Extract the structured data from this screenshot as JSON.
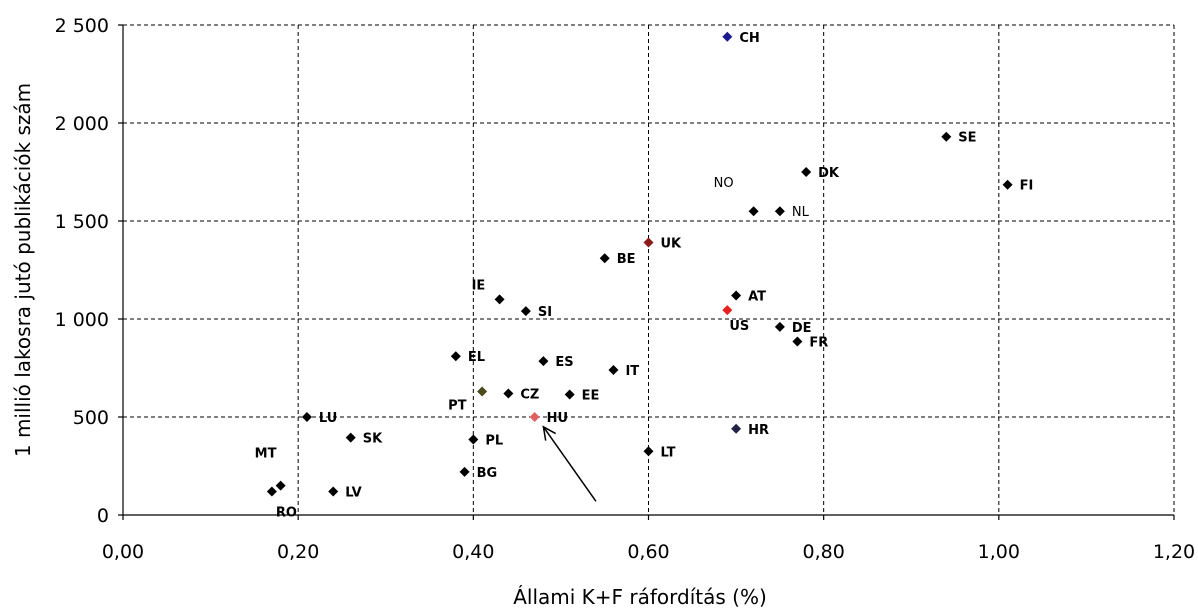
{
  "chart_data": {
    "type": "scatter",
    "xlabel": "Állami K+F ráfordítás (%)",
    "ylabel": "1 millió lakosra jutó publikációk szám",
    "xlim": [
      0,
      1.2
    ],
    "ylim": [
      0,
      2500
    ],
    "x_ticks": [
      {
        "value": 0,
        "label": "0,00"
      },
      {
        "value": 0.2,
        "label": "0,20"
      },
      {
        "value": 0.4,
        "label": "0,40"
      },
      {
        "value": 0.6,
        "label": "0,60"
      },
      {
        "value": 0.8,
        "label": "0,80"
      },
      {
        "value": 1.0,
        "label": "1,00"
      },
      {
        "value": 1.2,
        "label": "1,20"
      }
    ],
    "y_ticks": [
      {
        "value": 0,
        "label": "0"
      },
      {
        "value": 500,
        "label": "500"
      },
      {
        "value": 1000,
        "label": "1 000"
      },
      {
        "value": 1500,
        "label": "1 500"
      },
      {
        "value": 2000,
        "label": "2 000"
      },
      {
        "value": 2500,
        "label": "2 500"
      }
    ],
    "grid": true,
    "points": [
      {
        "label": "CH",
        "x": 0.69,
        "y": 2440,
        "color": "#1a1a8c",
        "label_dx": 12,
        "label_dy": 5
      },
      {
        "label": "SE",
        "x": 0.94,
        "y": 1930,
        "color": "#000000",
        "label_dx": 12,
        "label_dy": 5
      },
      {
        "label": "DK",
        "x": 0.78,
        "y": 1750,
        "color": "#000000",
        "label_dx": 12,
        "label_dy": 5
      },
      {
        "label": "FI",
        "x": 1.01,
        "y": 1685,
        "color": "#000000",
        "label_dx": 12,
        "label_dy": 5
      },
      {
        "label": "NO",
        "x": 0.72,
        "y": 1550,
        "color": "#000000",
        "label_dx": -40,
        "label_dy": -24,
        "light": true
      },
      {
        "label": "NL",
        "x": 0.75,
        "y": 1550,
        "color": "#000000",
        "label_dx": 12,
        "label_dy": 5,
        "light": true
      },
      {
        "label": "UK",
        "x": 0.6,
        "y": 1390,
        "color": "#8b1a1a",
        "label_dx": 12,
        "label_dy": 5
      },
      {
        "label": "BE",
        "x": 0.55,
        "y": 1310,
        "color": "#000000",
        "label_dx": 12,
        "label_dy": 5
      },
      {
        "label": "AT",
        "x": 0.7,
        "y": 1120,
        "color": "#000000",
        "label_dx": 12,
        "label_dy": 5
      },
      {
        "label": "IE",
        "x": 0.43,
        "y": 1100,
        "color": "#000000",
        "label_dx": -28,
        "label_dy": -10
      },
      {
        "label": "SI",
        "x": 0.46,
        "y": 1040,
        "color": "#000000",
        "label_dx": 12,
        "label_dy": 5
      },
      {
        "label": "US",
        "x": 0.69,
        "y": 1045,
        "color": "#e62020",
        "label_dx": 2,
        "label_dy": 20
      },
      {
        "label": "DE",
        "x": 0.75,
        "y": 960,
        "color": "#000000",
        "label_dx": 12,
        "label_dy": 0
      },
      {
        "label": "FR",
        "x": 0.77,
        "y": 885,
        "color": "#000000",
        "label_dx": 12,
        "label_dy": 5
      },
      {
        "label": "EL",
        "x": 0.38,
        "y": 810,
        "color": "#000000",
        "label_dx": 12,
        "label_dy": 5
      },
      {
        "label": "ES",
        "x": 0.48,
        "y": 785,
        "color": "#000000",
        "label_dx": 12,
        "label_dy": 5
      },
      {
        "label": "IT",
        "x": 0.56,
        "y": 740,
        "color": "#000000",
        "label_dx": 12,
        "label_dy": 5
      },
      {
        "label": "PT",
        "x": 0.41,
        "y": 630,
        "color": "#4a4a1a",
        "label_dx": -34,
        "label_dy": 18
      },
      {
        "label": "CZ",
        "x": 0.44,
        "y": 620,
        "color": "#000000",
        "label_dx": 12,
        "label_dy": 5
      },
      {
        "label": "EE",
        "x": 0.51,
        "y": 615,
        "color": "#000000",
        "label_dx": 12,
        "label_dy": 5
      },
      {
        "label": "LU",
        "x": 0.21,
        "y": 500,
        "color": "#000000",
        "label_dx": 12,
        "label_dy": 5
      },
      {
        "label": "HU",
        "x": 0.47,
        "y": 500,
        "color": "#e06060",
        "label_dx": 12,
        "label_dy": 5
      },
      {
        "label": "HR",
        "x": 0.7,
        "y": 440,
        "color": "#222244",
        "label_dx": 12,
        "label_dy": 5
      },
      {
        "label": "SK",
        "x": 0.26,
        "y": 395,
        "color": "#000000",
        "label_dx": 12,
        "label_dy": 5
      },
      {
        "label": "PL",
        "x": 0.4,
        "y": 385,
        "color": "#000000",
        "label_dx": 12,
        "label_dy": 5
      },
      {
        "label": "LT",
        "x": 0.6,
        "y": 325,
        "color": "#000000",
        "label_dx": 12,
        "label_dy": 5
      },
      {
        "label": "BG",
        "x": 0.39,
        "y": 220,
        "color": "#000000",
        "label_dx": 12,
        "label_dy": 5
      },
      {
        "label": "MT",
        "x": 0.18,
        "y": 150,
        "color": "#000000",
        "label_dx": -26,
        "label_dy": -28
      },
      {
        "label": "RO",
        "x": 0.17,
        "y": 120,
        "color": "#000000",
        "label_dx": 4,
        "label_dy": 25
      },
      {
        "label": "LV",
        "x": 0.24,
        "y": 120,
        "color": "#000000",
        "label_dx": 12,
        "label_dy": 5
      }
    ],
    "annotations": [
      {
        "type": "arrow",
        "from": {
          "x": 0.54,
          "y": 70
        },
        "to": {
          "x": 0.48,
          "y": 450
        }
      }
    ]
  }
}
